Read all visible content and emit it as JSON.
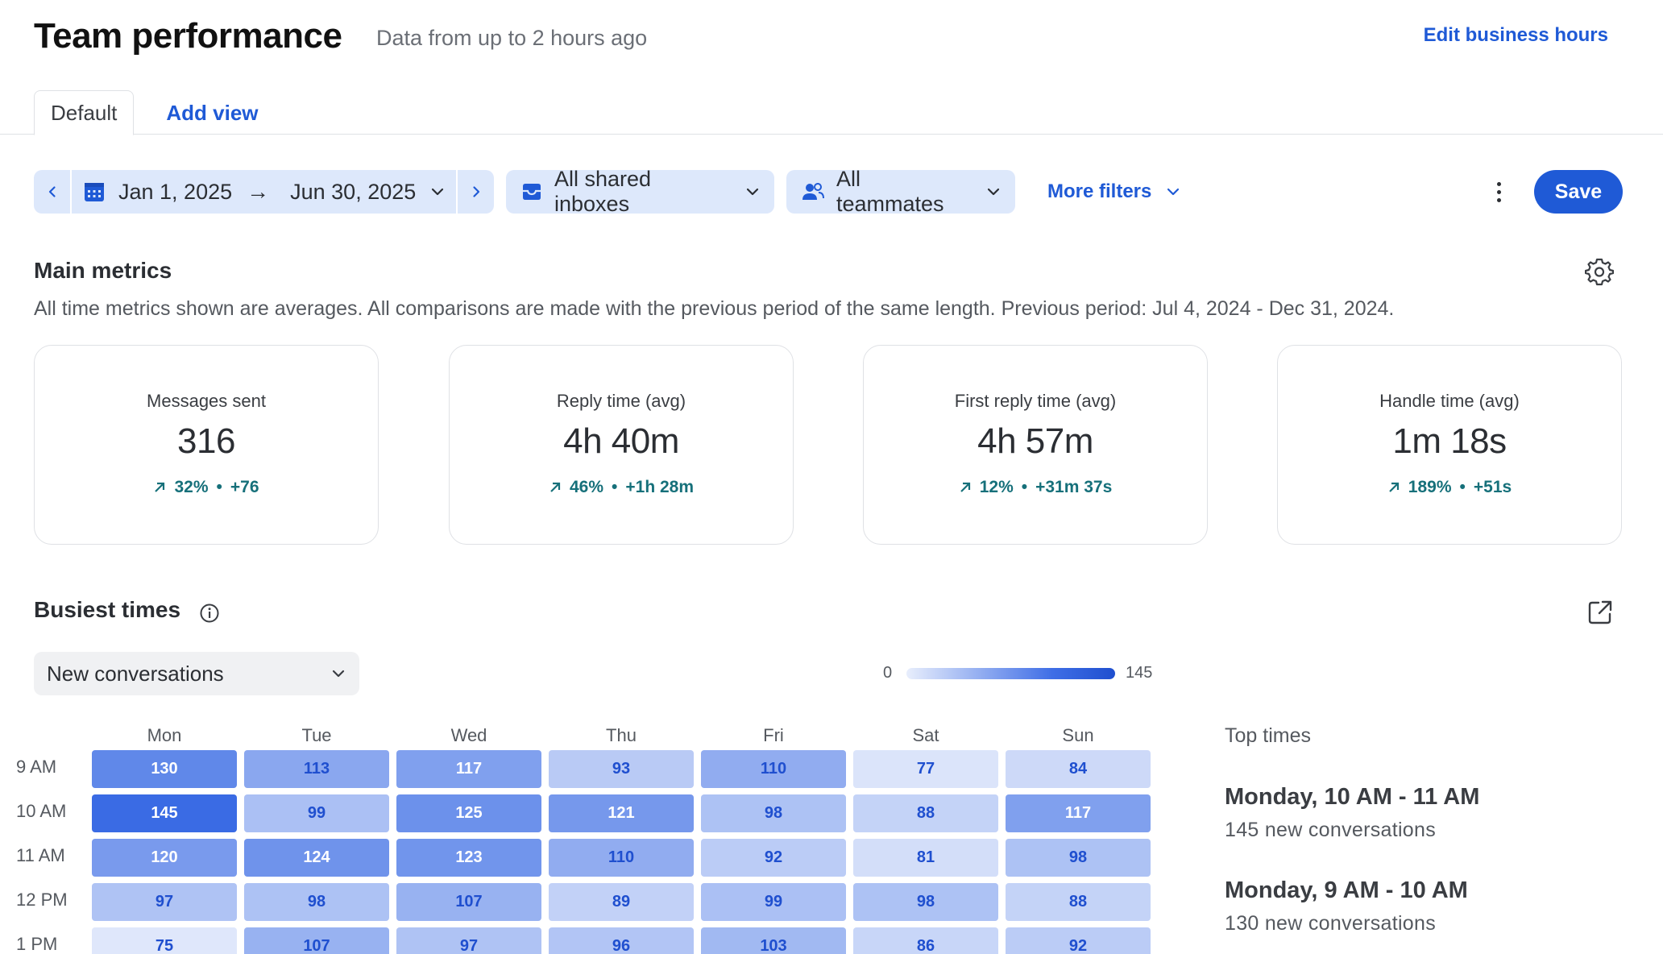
{
  "header": {
    "title": "Team performance",
    "subtitle": "Data from up to 2 hours ago",
    "edit_link": "Edit business hours"
  },
  "tabs": [
    {
      "label": "Default",
      "active": true
    },
    {
      "label": "Add view",
      "active": false
    }
  ],
  "filters": {
    "date_start": "Jan 1, 2025",
    "date_end": "Jun 30, 2025",
    "inboxes": "All shared inboxes",
    "teammates": "All teammates",
    "more_filters": "More filters",
    "save_label": "Save"
  },
  "main_metrics": {
    "title": "Main metrics",
    "description": "All time metrics shown are averages. All comparisons are made with the previous period of the same length. Previous period: Jul 4, 2024 - Dec 31, 2024.",
    "cards": [
      {
        "label": "Messages sent",
        "value": "316",
        "pct": "32%",
        "diff": "+76"
      },
      {
        "label": "Reply time (avg)",
        "value": "4h 40m",
        "pct": "46%",
        "diff": "+1h 28m"
      },
      {
        "label": "First reply time (avg)",
        "value": "4h 57m",
        "pct": "12%",
        "diff": "+31m 37s"
      },
      {
        "label": "Handle time (avg)",
        "value": "1m 18s",
        "pct": "189%",
        "diff": "+51s"
      }
    ]
  },
  "busiest": {
    "title": "Busiest times",
    "metric": "New conversations",
    "legend_min": "0",
    "legend_max": "145",
    "days": [
      "Mon",
      "Tue",
      "Wed",
      "Thu",
      "Fri",
      "Sat",
      "Sun"
    ],
    "hours": [
      "9 AM",
      "10 AM",
      "11 AM",
      "12 PM",
      "1 PM"
    ],
    "values": [
      [
        130,
        113,
        117,
        93,
        110,
        77,
        84
      ],
      [
        145,
        99,
        125,
        121,
        98,
        88,
        117
      ],
      [
        120,
        124,
        123,
        110,
        92,
        81,
        98
      ],
      [
        97,
        98,
        107,
        89,
        99,
        98,
        88
      ],
      [
        75,
        107,
        97,
        96,
        103,
        86,
        92
      ]
    ],
    "top_times_title": "Top times",
    "top_times": [
      {
        "when": "Monday, 10 AM - 11 AM",
        "count": "145 new conversations"
      },
      {
        "when": "Monday, 9 AM - 10 AM",
        "count": "130 new conversations"
      }
    ]
  },
  "colors": {
    "accent": "#1f5ad6",
    "positive_delta": "#16707a",
    "heat_low": "#e8eefc",
    "heat_high": "#3a6be4"
  }
}
